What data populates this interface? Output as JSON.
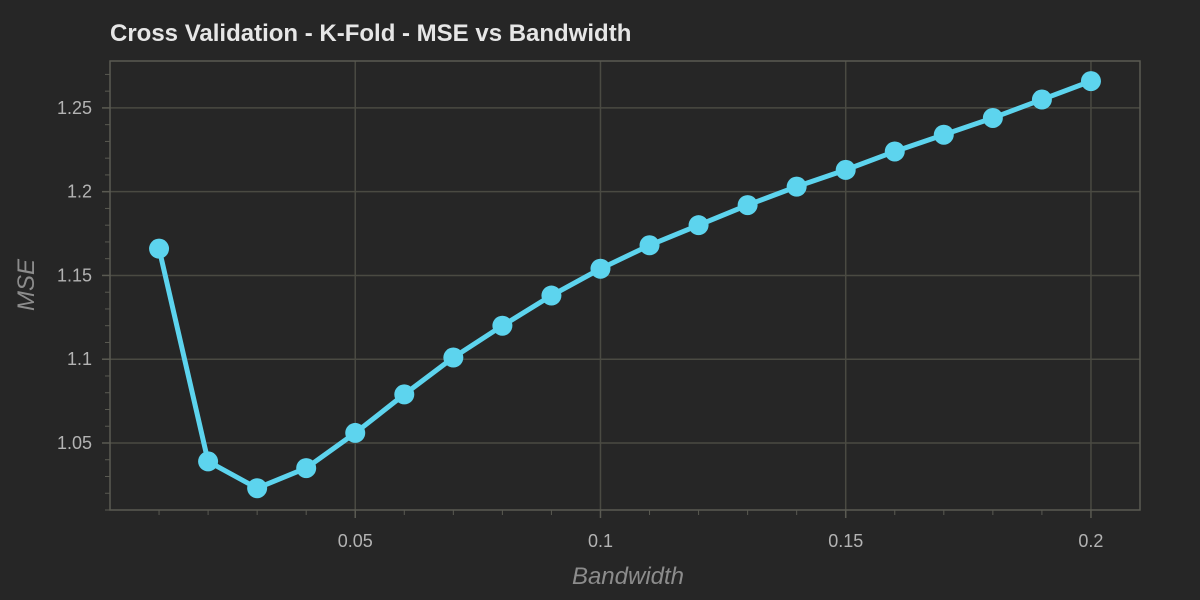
{
  "chart_data": {
    "type": "line",
    "title": "Cross Validation - K-Fold - MSE vs Bandwidth",
    "xlabel": "Bandwidth",
    "ylabel": "MSE",
    "xlim": [
      0.0,
      0.21
    ],
    "ylim": [
      1.01,
      1.278
    ],
    "x_ticks": [
      0.05,
      0.1,
      0.15,
      0.2
    ],
    "x_tick_labels": [
      "0.05",
      "0.1",
      "0.15",
      "0.2"
    ],
    "y_ticks": [
      1.05,
      1.1,
      1.15,
      1.2,
      1.25
    ],
    "y_tick_labels": [
      "1.05",
      "1.1",
      "1.15",
      "1.2",
      "1.25"
    ],
    "grid": true,
    "legend": "none",
    "series": [
      {
        "color": "#5dd4ee",
        "x": [
          0.01,
          0.02,
          0.03,
          0.04,
          0.05,
          0.06,
          0.07,
          0.08,
          0.09,
          0.1,
          0.11,
          0.12,
          0.13,
          0.14,
          0.15,
          0.16,
          0.17,
          0.18,
          0.19,
          0.2
        ],
        "y": [
          1.166,
          1.039,
          1.023,
          1.035,
          1.056,
          1.079,
          1.101,
          1.12,
          1.138,
          1.154,
          1.168,
          1.18,
          1.192,
          1.203,
          1.213,
          1.224,
          1.234,
          1.244,
          1.255,
          1.266
        ]
      }
    ],
    "colors": {
      "background": "#262626",
      "grid": "#4a4a42",
      "axis": "#5a5a52",
      "line": "#5dd4ee",
      "title": "#e6e6e6",
      "tick": "#b3b3b3",
      "axis_label": "#8c8c8c"
    }
  }
}
